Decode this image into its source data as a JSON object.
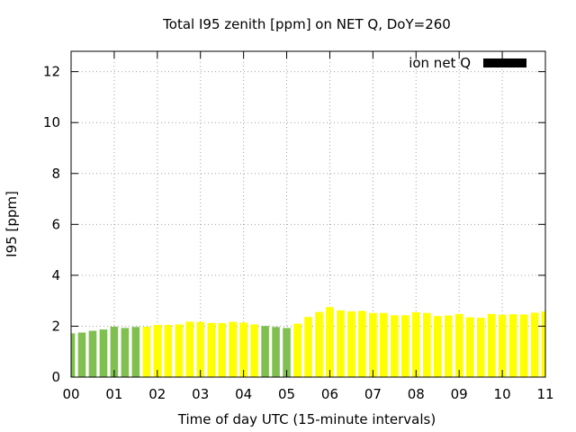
{
  "chart_data": {
    "type": "bar",
    "title": "Total I95 zenith [ppm] on NET Q, DoY=260",
    "xlabel": "Time of day UTC (15-minute intervals)",
    "ylabel": "I95 [ppm]",
    "ylim": [
      0,
      12.8
    ],
    "xlim": [
      0,
      11
    ],
    "yticks": [
      0,
      2,
      4,
      6,
      8,
      10,
      12
    ],
    "xticks": [
      {
        "value": 0,
        "label": "00"
      },
      {
        "value": 1,
        "label": "01"
      },
      {
        "value": 2,
        "label": "02"
      },
      {
        "value": 3,
        "label": "03"
      },
      {
        "value": 4,
        "label": "04"
      },
      {
        "value": 5,
        "label": "05"
      },
      {
        "value": 6,
        "label": "06"
      },
      {
        "value": 7,
        "label": "07"
      },
      {
        "value": 8,
        "label": "08"
      },
      {
        "value": 9,
        "label": "09"
      },
      {
        "value": 10,
        "label": "10"
      },
      {
        "value": 11,
        "label": "11"
      }
    ],
    "grid": true,
    "legend": {
      "label": "ion net Q",
      "position": "top-right",
      "color": "#000000"
    },
    "colors": {
      "green": "#80c050",
      "yellow": "#ffff00"
    },
    "bar_width_hours": 0.18,
    "bars": [
      {
        "x": 0.0,
        "value": 1.72,
        "color": "green"
      },
      {
        "x": 0.25,
        "value": 1.75,
        "color": "green"
      },
      {
        "x": 0.5,
        "value": 1.82,
        "color": "green"
      },
      {
        "x": 0.75,
        "value": 1.87,
        "color": "green"
      },
      {
        "x": 1.0,
        "value": 1.98,
        "color": "green"
      },
      {
        "x": 1.25,
        "value": 1.93,
        "color": "green"
      },
      {
        "x": 1.5,
        "value": 1.97,
        "color": "green"
      },
      {
        "x": 1.75,
        "value": 1.98,
        "color": "yellow"
      },
      {
        "x": 2.0,
        "value": 2.05,
        "color": "yellow"
      },
      {
        "x": 2.25,
        "value": 2.05,
        "color": "yellow"
      },
      {
        "x": 2.5,
        "value": 2.07,
        "color": "yellow"
      },
      {
        "x": 2.75,
        "value": 2.18,
        "color": "yellow"
      },
      {
        "x": 3.0,
        "value": 2.17,
        "color": "yellow"
      },
      {
        "x": 3.25,
        "value": 2.13,
        "color": "yellow"
      },
      {
        "x": 3.5,
        "value": 2.12,
        "color": "yellow"
      },
      {
        "x": 3.75,
        "value": 2.17,
        "color": "yellow"
      },
      {
        "x": 4.0,
        "value": 2.14,
        "color": "yellow"
      },
      {
        "x": 4.25,
        "value": 2.07,
        "color": "yellow"
      },
      {
        "x": 4.5,
        "value": 2.01,
        "color": "green"
      },
      {
        "x": 4.75,
        "value": 1.97,
        "color": "green"
      },
      {
        "x": 5.0,
        "value": 1.93,
        "color": "green"
      },
      {
        "x": 5.25,
        "value": 2.1,
        "color": "yellow"
      },
      {
        "x": 5.5,
        "value": 2.36,
        "color": "yellow"
      },
      {
        "x": 5.75,
        "value": 2.56,
        "color": "yellow"
      },
      {
        "x": 6.0,
        "value": 2.75,
        "color": "yellow"
      },
      {
        "x": 6.25,
        "value": 2.62,
        "color": "yellow"
      },
      {
        "x": 6.5,
        "value": 2.58,
        "color": "yellow"
      },
      {
        "x": 6.75,
        "value": 2.6,
        "color": "yellow"
      },
      {
        "x": 7.0,
        "value": 2.52,
        "color": "yellow"
      },
      {
        "x": 7.25,
        "value": 2.52,
        "color": "yellow"
      },
      {
        "x": 7.5,
        "value": 2.43,
        "color": "yellow"
      },
      {
        "x": 7.75,
        "value": 2.43,
        "color": "yellow"
      },
      {
        "x": 8.0,
        "value": 2.55,
        "color": "yellow"
      },
      {
        "x": 8.25,
        "value": 2.52,
        "color": "yellow"
      },
      {
        "x": 8.5,
        "value": 2.4,
        "color": "yellow"
      },
      {
        "x": 8.75,
        "value": 2.42,
        "color": "yellow"
      },
      {
        "x": 9.0,
        "value": 2.48,
        "color": "yellow"
      },
      {
        "x": 9.25,
        "value": 2.35,
        "color": "yellow"
      },
      {
        "x": 9.5,
        "value": 2.33,
        "color": "yellow"
      },
      {
        "x": 9.75,
        "value": 2.48,
        "color": "yellow"
      },
      {
        "x": 10.0,
        "value": 2.45,
        "color": "yellow"
      },
      {
        "x": 10.25,
        "value": 2.47,
        "color": "yellow"
      },
      {
        "x": 10.5,
        "value": 2.46,
        "color": "yellow"
      },
      {
        "x": 10.75,
        "value": 2.53,
        "color": "yellow"
      },
      {
        "x": 11.0,
        "value": 2.58,
        "color": "yellow"
      }
    ]
  }
}
